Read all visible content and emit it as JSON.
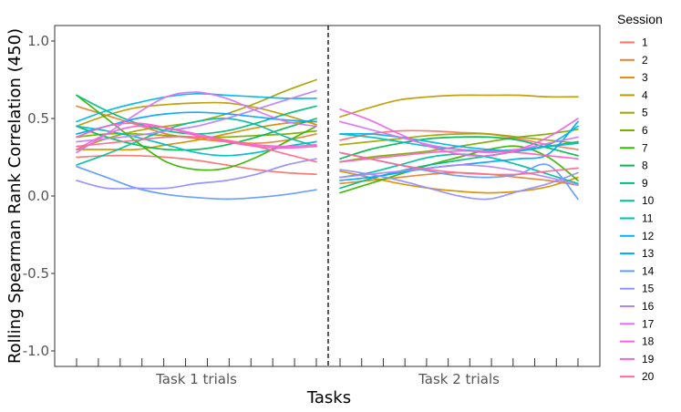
{
  "chart_data": {
    "type": "line",
    "xlabel": "Tasks",
    "ylabel": "Rolling Spearman Rank Correlation (450)",
    "ylim": [
      -1.1,
      1.1
    ],
    "yticks": [
      "1.0",
      "0.5",
      "0.0",
      "-0.5",
      "-1.0"
    ],
    "ytick_values": [
      1.0,
      0.5,
      0.0,
      -0.5,
      -1.0
    ],
    "panels": [
      "Task 1 trials",
      "Task 2 trials"
    ],
    "x_points": 9,
    "ticks_per_panel": 12,
    "divider": "dashed",
    "legend": {
      "title": "Session",
      "position": "right"
    },
    "series": [
      {
        "name": "1",
        "color": "#F8766D",
        "task1": [
          0.25,
          0.26,
          0.26,
          0.25,
          0.23,
          0.2,
          0.17,
          0.15,
          0.14
        ],
        "task2": [
          0.36,
          0.4,
          0.42,
          0.42,
          0.41,
          0.4,
          0.37,
          0.33,
          0.3
        ]
      },
      {
        "name": "2",
        "color": "#EA8331",
        "task1": [
          0.58,
          0.52,
          0.46,
          0.4,
          0.37,
          0.35,
          0.34,
          0.36,
          0.4
        ],
        "task2": [
          0.08,
          0.1,
          0.12,
          0.14,
          0.15,
          0.14,
          0.12,
          0.1,
          0.07
        ]
      },
      {
        "name": "3",
        "color": "#D89000",
        "task1": [
          0.3,
          0.3,
          0.3,
          0.33,
          0.36,
          0.4,
          0.44,
          0.47,
          0.48
        ],
        "task2": [
          0.16,
          0.12,
          0.08,
          0.05,
          0.03,
          0.02,
          0.03,
          0.06,
          0.12
        ]
      },
      {
        "name": "4",
        "color": "#C09B00",
        "task1": [
          0.45,
          0.52,
          0.57,
          0.59,
          0.6,
          0.6,
          0.57,
          0.52,
          0.46
        ],
        "task2": [
          0.51,
          0.57,
          0.62,
          0.64,
          0.65,
          0.65,
          0.65,
          0.64,
          0.64
        ]
      },
      {
        "name": "5",
        "color": "#A3A500",
        "task1": [
          0.3,
          0.37,
          0.42,
          0.45,
          0.48,
          0.53,
          0.6,
          0.68,
          0.75
        ],
        "task2": [
          0.33,
          0.35,
          0.37,
          0.39,
          0.4,
          0.4,
          0.38,
          0.36,
          0.34
        ]
      },
      {
        "name": "6",
        "color": "#7CAE00",
        "task1": [
          0.38,
          0.4,
          0.4,
          0.39,
          0.38,
          0.38,
          0.39,
          0.4,
          0.42
        ],
        "task2": [
          0.22,
          0.25,
          0.27,
          0.29,
          0.32,
          0.35,
          0.38,
          0.4,
          0.43
        ]
      },
      {
        "name": "7",
        "color": "#39B600",
        "task1": [
          0.65,
          0.5,
          0.35,
          0.22,
          0.17,
          0.18,
          0.25,
          0.35,
          0.45
        ],
        "task2": [
          0.02,
          0.08,
          0.14,
          0.2,
          0.25,
          0.3,
          0.32,
          0.25,
          0.1
        ]
      },
      {
        "name": "8",
        "color": "#00BB4E",
        "task1": [
          0.45,
          0.38,
          0.33,
          0.3,
          0.3,
          0.33,
          0.38,
          0.44,
          0.5
        ],
        "task2": [
          0.24,
          0.3,
          0.34,
          0.37,
          0.38,
          0.38,
          0.36,
          0.31,
          0.26
        ]
      },
      {
        "name": "9",
        "color": "#00BF7D",
        "task1": [
          0.65,
          0.55,
          0.47,
          0.42,
          0.4,
          0.42,
          0.47,
          0.53,
          0.58
        ],
        "task2": [
          0.05,
          0.11,
          0.16,
          0.2,
          0.23,
          0.26,
          0.29,
          0.32,
          0.35
        ]
      },
      {
        "name": "10",
        "color": "#00C1A3",
        "task1": [
          0.2,
          0.27,
          0.35,
          0.43,
          0.48,
          0.5,
          0.46,
          0.38,
          0.32
        ],
        "task2": [
          0.12,
          0.15,
          0.2,
          0.25,
          0.27,
          0.25,
          0.2,
          0.14,
          0.08
        ]
      },
      {
        "name": "11",
        "color": "#00BFC4",
        "task1": [
          0.45,
          0.42,
          0.38,
          0.33,
          0.28,
          0.26,
          0.28,
          0.32,
          0.35
        ],
        "task2": [
          0.4,
          0.38,
          0.35,
          0.32,
          0.3,
          0.29,
          0.3,
          0.32,
          0.34
        ]
      },
      {
        "name": "12",
        "color": "#00B8E7",
        "task1": [
          0.48,
          0.55,
          0.6,
          0.64,
          0.66,
          0.65,
          0.64,
          0.63,
          0.63
        ],
        "task2": [
          0.4,
          0.4,
          0.38,
          0.35,
          0.32,
          0.3,
          0.29,
          0.33,
          0.45
        ]
      },
      {
        "name": "13",
        "color": "#00A9FF",
        "task1": [
          0.4,
          0.45,
          0.5,
          0.53,
          0.54,
          0.53,
          0.51,
          0.49,
          0.48
        ],
        "task2": [
          0.1,
          0.12,
          0.15,
          0.18,
          0.2,
          0.22,
          0.24,
          0.27,
          0.48
        ]
      },
      {
        "name": "14",
        "color": "#619CFF",
        "task1": [
          0.19,
          0.12,
          0.05,
          0.01,
          -0.01,
          -0.02,
          -0.01,
          0.01,
          0.04
        ],
        "task2": [
          0.28,
          0.24,
          0.2,
          0.16,
          0.13,
          0.12,
          0.14,
          0.2,
          -0.02
        ]
      },
      {
        "name": "15",
        "color": "#9590FF",
        "task1": [
          0.1,
          0.05,
          0.05,
          0.05,
          0.08,
          0.1,
          0.14,
          0.2,
          0.24
        ],
        "task2": [
          0.17,
          0.14,
          0.1,
          0.05,
          0.0,
          -0.02,
          0.03,
          0.08,
          0.15
        ]
      },
      {
        "name": "16",
        "color": "#B983FF",
        "task1": [
          0.35,
          0.37,
          0.39,
          0.42,
          0.45,
          0.5,
          0.56,
          0.62,
          0.68
        ],
        "task2": [
          0.12,
          0.14,
          0.16,
          0.18,
          0.2,
          0.19,
          0.16,
          0.12,
          0.07
        ]
      },
      {
        "name": "17",
        "color": "#DB72FB",
        "task1": [
          0.28,
          0.4,
          0.53,
          0.64,
          0.67,
          0.63,
          0.55,
          0.48,
          0.45
        ],
        "task2": [
          0.48,
          0.43,
          0.38,
          0.33,
          0.3,
          0.28,
          0.3,
          0.34,
          0.38
        ]
      },
      {
        "name": "18",
        "color": "#F564E3",
        "task1": [
          0.3,
          0.4,
          0.45,
          0.44,
          0.4,
          0.36,
          0.33,
          0.32,
          0.33
        ],
        "task2": [
          0.56,
          0.49,
          0.4,
          0.32,
          0.27,
          0.26,
          0.3,
          0.38,
          0.5
        ]
      },
      {
        "name": "19",
        "color": "#FF61C3",
        "task1": [
          0.38,
          0.45,
          0.47,
          0.44,
          0.39,
          0.35,
          0.32,
          0.31,
          0.32
        ],
        "task2": [
          0.22,
          0.24,
          0.26,
          0.28,
          0.29,
          0.29,
          0.28,
          0.26,
          0.24
        ]
      },
      {
        "name": "20",
        "color": "#FF6C91",
        "task1": [
          0.32,
          0.34,
          0.36,
          0.38,
          0.38,
          0.36,
          0.32,
          0.27,
          0.22
        ],
        "task2": [
          0.28,
          0.24,
          0.2,
          0.17,
          0.15,
          0.14,
          0.14,
          0.16,
          0.18
        ]
      }
    ]
  }
}
